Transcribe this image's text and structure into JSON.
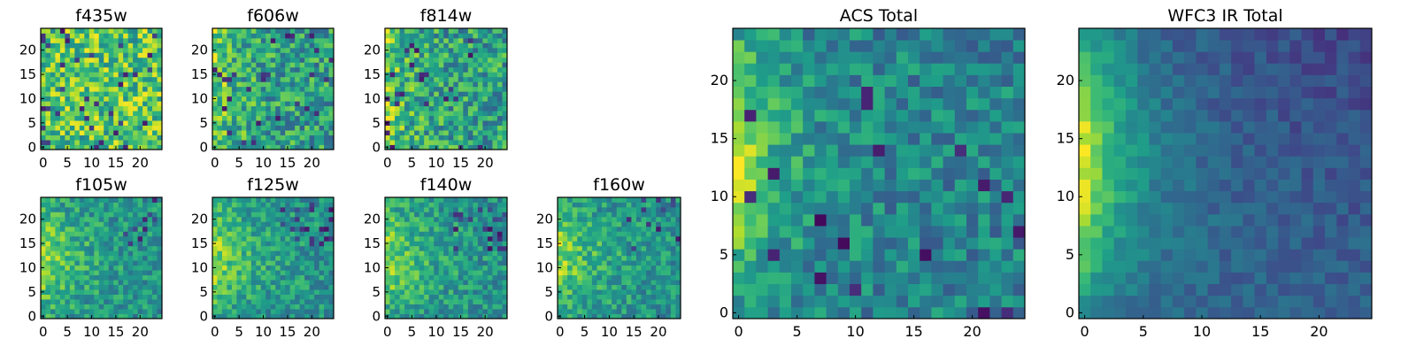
{
  "chart_data": [
    {
      "type": "heatmap",
      "title": "f435w",
      "grid_size": 25,
      "x_ticks": [
        "0",
        "5",
        "10",
        "15",
        "20"
      ],
      "y_ticks": [
        "0",
        "5",
        "10",
        "15",
        "20"
      ],
      "colormap": "viridis",
      "pattern": "noisy-bright",
      "seed": 11
    },
    {
      "type": "heatmap",
      "title": "f606w",
      "grid_size": 25,
      "x_ticks": [
        "0",
        "5",
        "10",
        "15",
        "20"
      ],
      "y_ticks": [
        "0",
        "5",
        "10",
        "15",
        "20"
      ],
      "colormap": "viridis",
      "pattern": "noisy-left-gradient",
      "seed": 23
    },
    {
      "type": "heatmap",
      "title": "f814w",
      "grid_size": 25,
      "x_ticks": [
        "0",
        "5",
        "10",
        "15",
        "20"
      ],
      "y_ticks": [
        "0",
        "5",
        "10",
        "15",
        "20"
      ],
      "colormap": "viridis",
      "pattern": "noisy-left-gradient",
      "seed": 37
    },
    {
      "type": "heatmap",
      "title": "f105w",
      "grid_size": 25,
      "x_ticks": [
        "0",
        "5",
        "10",
        "15",
        "20"
      ],
      "y_ticks": [
        "0",
        "5",
        "10",
        "15",
        "20"
      ],
      "colormap": "viridis",
      "pattern": "smooth-left-gradient",
      "seed": 41
    },
    {
      "type": "heatmap",
      "title": "f125w",
      "grid_size": 25,
      "x_ticks": [
        "0",
        "5",
        "10",
        "15",
        "20"
      ],
      "y_ticks": [
        "0",
        "5",
        "10",
        "15",
        "20"
      ],
      "colormap": "viridis",
      "pattern": "smooth-left-gradient",
      "seed": 53
    },
    {
      "type": "heatmap",
      "title": "f140w",
      "grid_size": 25,
      "x_ticks": [
        "0",
        "5",
        "10",
        "15",
        "20"
      ],
      "y_ticks": [
        "0",
        "5",
        "10",
        "15",
        "20"
      ],
      "colormap": "viridis",
      "pattern": "smooth-left-gradient",
      "seed": 67
    },
    {
      "type": "heatmap",
      "title": "f160w",
      "grid_size": 25,
      "x_ticks": [
        "0",
        "5",
        "10",
        "15",
        "20"
      ],
      "y_ticks": [
        "0",
        "5",
        "10",
        "15",
        "20"
      ],
      "colormap": "viridis",
      "pattern": "smooth-left-gradient",
      "seed": 79
    },
    {
      "type": "heatmap",
      "title": "ACS Total",
      "grid_size": 25,
      "x_ticks": [
        "0",
        "5",
        "10",
        "15",
        "20"
      ],
      "y_ticks": [
        "0",
        "5",
        "10",
        "15",
        "20"
      ],
      "colormap": "viridis",
      "pattern": "bright-left-edge",
      "seed": 83
    },
    {
      "type": "heatmap",
      "title": "WFC3 IR Total",
      "grid_size": 25,
      "x_ticks": [
        "0",
        "5",
        "10",
        "15",
        "20"
      ],
      "y_ticks": [
        "0",
        "5",
        "10",
        "15",
        "20"
      ],
      "colormap": "viridis",
      "pattern": "bright-left-edge-dark-right",
      "seed": 97
    }
  ]
}
